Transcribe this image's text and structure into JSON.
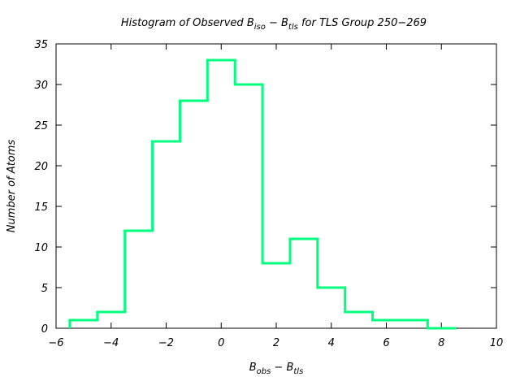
{
  "chart_data": {
    "type": "histogram",
    "title": {
      "prefix": "Histogram of Observed B",
      "sub1": "iso",
      "middle": " − B",
      "sub2": "tls",
      "suffix": " for TLS Group 250−269"
    },
    "ylabel": "Number of Atoms",
    "xlabel": {
      "b1": "B",
      "sub1": "obs",
      "mid": " − B",
      "sub2": "tls"
    },
    "xlim": [
      -6,
      10
    ],
    "ylim": [
      0,
      35
    ],
    "xticks": [
      -6,
      -4,
      -2,
      0,
      2,
      4,
      6,
      8,
      10
    ],
    "xtick_labels": [
      "−6",
      "−4",
      "−2",
      "0",
      "2",
      "4",
      "6",
      "8",
      "10"
    ],
    "yticks": [
      0,
      5,
      10,
      15,
      20,
      25,
      30,
      35
    ],
    "ytick_labels": [
      "0",
      "5",
      "10",
      "15",
      "20",
      "25",
      "30",
      "35"
    ],
    "bin_edges": [
      -5.5,
      -4.5,
      -3.5,
      -2.5,
      -1.5,
      -0.5,
      0.5,
      1.5,
      2.5,
      3.5,
      4.5,
      5.5,
      6.5,
      7.5,
      8.5
    ],
    "counts": [
      1,
      2,
      12,
      23,
      28,
      33,
      30,
      8,
      11,
      5,
      2,
      1,
      1,
      0
    ],
    "line_color": "#00ff7f",
    "grid": false
  }
}
